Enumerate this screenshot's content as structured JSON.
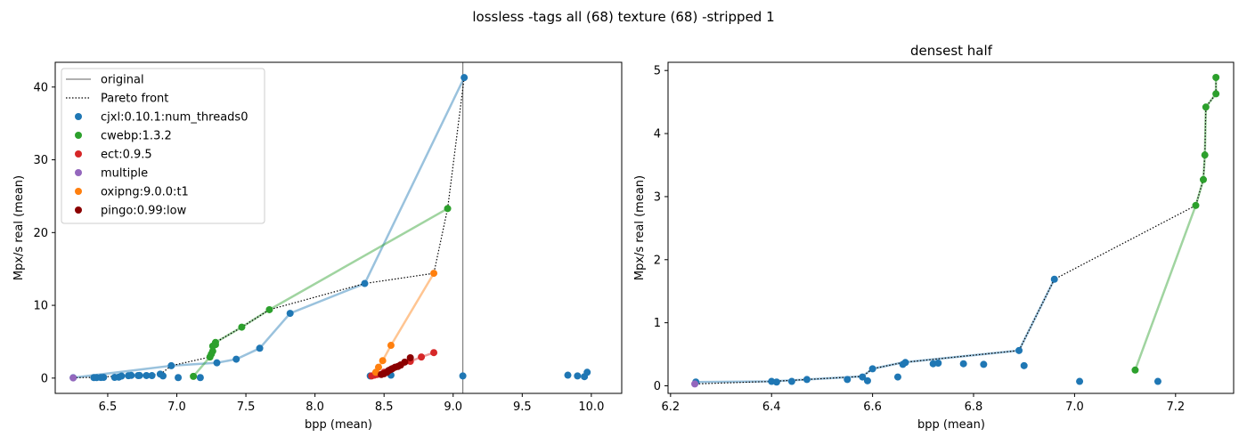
{
  "figure_title": "lossless -tags all (68) texture (68) -stripped 1",
  "colors": {
    "cjxl": "#1f77b4",
    "cwebp": "#2ca02c",
    "ect": "#d62728",
    "multiple": "#9467bd",
    "oxipng": "#ff7f0e",
    "pingo": "#8b0000",
    "original": "#808080",
    "pareto": "#000000"
  },
  "chart_data": [
    {
      "type": "scatter",
      "title": "",
      "xlabel": "bpp (mean)",
      "ylabel": "Mpx/s real (mean)",
      "xlim": [
        6.12,
        10.22
      ],
      "ylim": [
        -2.1,
        43.4
      ],
      "xticks": [
        "6.5",
        "7.0",
        "7.5",
        "8.0",
        "8.5",
        "9.0",
        "9.5",
        "10.0"
      ],
      "yticks": [
        "0",
        "10",
        "20",
        "30",
        "40"
      ],
      "legend_position": "top-left",
      "legend": [
        {
          "label": "original",
          "kind": "solid-line",
          "color_key": "original"
        },
        {
          "label": "Pareto front",
          "kind": "dotted-line",
          "color_key": "pareto"
        },
        {
          "label": "cjxl:0.10.1:num_threads0",
          "kind": "marker",
          "color_key": "cjxl"
        },
        {
          "label": "cwebp:1.3.2",
          "kind": "marker",
          "color_key": "cwebp"
        },
        {
          "label": "ect:0.9.5",
          "kind": "marker",
          "color_key": "ect"
        },
        {
          "label": "multiple",
          "kind": "marker",
          "color_key": "multiple"
        },
        {
          "label": "oxipng:9.0.0:t1",
          "kind": "marker",
          "color_key": "oxipng"
        },
        {
          "label": "pingo:0.99:low",
          "kind": "marker",
          "color_key": "pingo"
        }
      ],
      "original_line_x": 9.07,
      "pareto_front": [
        [
          6.25,
          0.05
        ],
        [
          6.4,
          0.1
        ],
        [
          6.6,
          0.3
        ],
        [
          6.88,
          0.5
        ],
        [
          6.96,
          1.7
        ],
        [
          7.24,
          2.9
        ],
        [
          7.26,
          4.6
        ],
        [
          7.28,
          4.9
        ],
        [
          7.47,
          7.0
        ],
        [
          7.67,
          9.4
        ],
        [
          8.36,
          13.0
        ],
        [
          8.86,
          14.4
        ],
        [
          8.96,
          23.3
        ],
        [
          9.08,
          41.3
        ]
      ],
      "series": [
        {
          "color_key": "cjxl",
          "line": [
            [
              6.25,
              0.05
            ],
            [
              6.96,
              1.7
            ],
            [
              7.29,
              2.1
            ],
            [
              7.43,
              2.6
            ],
            [
              7.6,
              4.1
            ],
            [
              7.82,
              8.9
            ],
            [
              8.36,
              13.0
            ],
            [
              9.08,
              41.3
            ]
          ],
          "points": [
            [
              6.25,
              0.05
            ],
            [
              6.4,
              0.07
            ],
            [
              6.42,
              0.07
            ],
            [
              6.45,
              0.08
            ],
            [
              6.47,
              0.1
            ],
            [
              6.55,
              0.1
            ],
            [
              6.58,
              0.13
            ],
            [
              6.6,
              0.28
            ],
            [
              6.65,
              0.33
            ],
            [
              6.67,
              0.37
            ],
            [
              6.72,
              0.35
            ],
            [
              6.73,
              0.36
            ],
            [
              6.78,
              0.35
            ],
            [
              6.82,
              0.34
            ],
            [
              6.88,
              0.55
            ],
            [
              6.9,
              0.3
            ],
            [
              6.96,
              1.7
            ],
            [
              7.01,
              0.07
            ],
            [
              7.17,
              0.07
            ],
            [
              7.29,
              2.1
            ],
            [
              7.43,
              2.6
            ],
            [
              7.6,
              4.1
            ],
            [
              7.82,
              8.9
            ],
            [
              8.36,
              13.0
            ],
            [
              8.4,
              0.3
            ],
            [
              8.55,
              0.4
            ],
            [
              9.07,
              0.3
            ],
            [
              9.08,
              41.3
            ],
            [
              9.83,
              0.4
            ],
            [
              9.9,
              0.3
            ],
            [
              9.95,
              0.2
            ],
            [
              9.97,
              0.8
            ]
          ]
        },
        {
          "color_key": "cwebp",
          "line": [
            [
              7.12,
              0.24
            ],
            [
              7.24,
              2.9
            ],
            [
              7.25,
              3.3
            ],
            [
              7.26,
              3.7
            ],
            [
              7.26,
              4.4
            ],
            [
              7.28,
              4.9
            ],
            [
              7.47,
              7.0
            ],
            [
              7.67,
              9.4
            ],
            [
              8.96,
              23.3
            ]
          ],
          "points": [
            [
              7.12,
              0.24
            ],
            [
              7.24,
              2.9
            ],
            [
              7.25,
              3.3
            ],
            [
              7.26,
              3.7
            ],
            [
              7.26,
              4.4
            ],
            [
              7.28,
              4.6
            ],
            [
              7.28,
              4.9
            ],
            [
              7.47,
              7.0
            ],
            [
              7.67,
              9.4
            ],
            [
              8.96,
              23.3
            ]
          ]
        },
        {
          "color_key": "ect",
          "line": [
            [
              8.41,
              0.3
            ],
            [
              8.45,
              0.5
            ],
            [
              8.5,
              0.8
            ],
            [
              8.56,
              1.3
            ],
            [
              8.62,
              1.8
            ],
            [
              8.69,
              2.3
            ],
            [
              8.77,
              2.9
            ],
            [
              8.86,
              3.5
            ]
          ],
          "points": [
            [
              8.41,
              0.3
            ],
            [
              8.43,
              0.4
            ],
            [
              8.45,
              0.5
            ],
            [
              8.5,
              0.8
            ],
            [
              8.56,
              1.3
            ],
            [
              8.62,
              1.8
            ],
            [
              8.69,
              2.3
            ],
            [
              8.77,
              2.9
            ],
            [
              8.86,
              3.5
            ]
          ]
        },
        {
          "color_key": "multiple",
          "line": [],
          "points": [
            [
              6.25,
              0.03
            ]
          ]
        },
        {
          "color_key": "oxipng",
          "line": [
            [
              8.44,
              0.8
            ],
            [
              8.46,
              1.5
            ],
            [
              8.49,
              2.4
            ],
            [
              8.55,
              4.5
            ],
            [
              8.86,
              14.4
            ]
          ],
          "points": [
            [
              8.44,
              0.8
            ],
            [
              8.46,
              1.5
            ],
            [
              8.49,
              2.4
            ],
            [
              8.55,
              4.5
            ],
            [
              8.86,
              14.4
            ]
          ]
        },
        {
          "color_key": "pingo",
          "line": [
            [
              8.48,
              0.5
            ],
            [
              8.52,
              0.8
            ],
            [
              8.54,
              1.1
            ],
            [
              8.56,
              1.3
            ],
            [
              8.58,
              1.5
            ],
            [
              8.6,
              1.6
            ],
            [
              8.62,
              1.8
            ],
            [
              8.65,
              2.2
            ],
            [
              8.69,
              2.8
            ]
          ],
          "points": [
            [
              8.48,
              0.5
            ],
            [
              8.5,
              0.6
            ],
            [
              8.52,
              0.8
            ],
            [
              8.53,
              1.0
            ],
            [
              8.54,
              1.1
            ],
            [
              8.55,
              1.2
            ],
            [
              8.56,
              1.3
            ],
            [
              8.58,
              1.5
            ],
            [
              8.6,
              1.6
            ],
            [
              8.62,
              1.8
            ],
            [
              8.65,
              2.2
            ],
            [
              8.69,
              2.8
            ]
          ]
        }
      ]
    },
    {
      "type": "scatter",
      "title": "densest half",
      "xlabel": "bpp (mean)",
      "ylabel": "Mpx/s real (mean)",
      "xlim": [
        6.195,
        7.315
      ],
      "ylim": [
        -0.12,
        5.13
      ],
      "xticks": [
        "6.2",
        "6.4",
        "6.6",
        "6.8",
        "7.0",
        "7.2"
      ],
      "yticks": [
        "0",
        "1",
        "2",
        "3",
        "4",
        "5"
      ],
      "pareto_front": [
        [
          6.25,
          0.03
        ],
        [
          6.4,
          0.07
        ],
        [
          6.47,
          0.1
        ],
        [
          6.58,
          0.15
        ],
        [
          6.6,
          0.27
        ],
        [
          6.66,
          0.37
        ],
        [
          6.89,
          0.56
        ],
        [
          6.96,
          1.69
        ],
        [
          7.24,
          2.86
        ],
        [
          7.255,
          3.27
        ],
        [
          7.258,
          3.66
        ],
        [
          7.26,
          4.42
        ],
        [
          7.28,
          4.63
        ],
        [
          7.28,
          4.89
        ]
      ],
      "series": [
        {
          "color_key": "cjxl",
          "line": [
            [
              6.25,
              0.06
            ],
            [
              6.4,
              0.07
            ],
            [
              6.47,
              0.1
            ],
            [
              6.58,
              0.15
            ],
            [
              6.6,
              0.27
            ],
            [
              6.66,
              0.37
            ],
            [
              6.89,
              0.56
            ],
            [
              6.96,
              1.69
            ]
          ],
          "points": [
            [
              6.25,
              0.06
            ],
            [
              6.4,
              0.07
            ],
            [
              6.41,
              0.06
            ],
            [
              6.44,
              0.07
            ],
            [
              6.47,
              0.1
            ],
            [
              6.55,
              0.1
            ],
            [
              6.58,
              0.14
            ],
            [
              6.59,
              0.08
            ],
            [
              6.6,
              0.27
            ],
            [
              6.65,
              0.14
            ],
            [
              6.66,
              0.34
            ],
            [
              6.665,
              0.37
            ],
            [
              6.72,
              0.35
            ],
            [
              6.73,
              0.36
            ],
            [
              6.78,
              0.35
            ],
            [
              6.82,
              0.34
            ],
            [
              6.89,
              0.56
            ],
            [
              6.9,
              0.32
            ],
            [
              6.96,
              1.69
            ],
            [
              7.01,
              0.07
            ],
            [
              7.165,
              0.07
            ]
          ]
        },
        {
          "color_key": "cwebp",
          "line": [
            [
              7.12,
              0.25
            ],
            [
              7.24,
              2.86
            ],
            [
              7.255,
              3.27
            ],
            [
              7.258,
              3.66
            ],
            [
              7.26,
              4.42
            ],
            [
              7.28,
              4.63
            ],
            [
              7.28,
              4.89
            ]
          ],
          "points": [
            [
              7.12,
              0.25
            ],
            [
              7.24,
              2.86
            ],
            [
              7.255,
              3.27
            ],
            [
              7.258,
              3.66
            ],
            [
              7.26,
              4.42
            ],
            [
              7.28,
              4.63
            ],
            [
              7.28,
              4.89
            ]
          ]
        },
        {
          "color_key": "multiple",
          "line": [],
          "points": [
            [
              6.248,
              0.03
            ]
          ]
        }
      ]
    }
  ]
}
